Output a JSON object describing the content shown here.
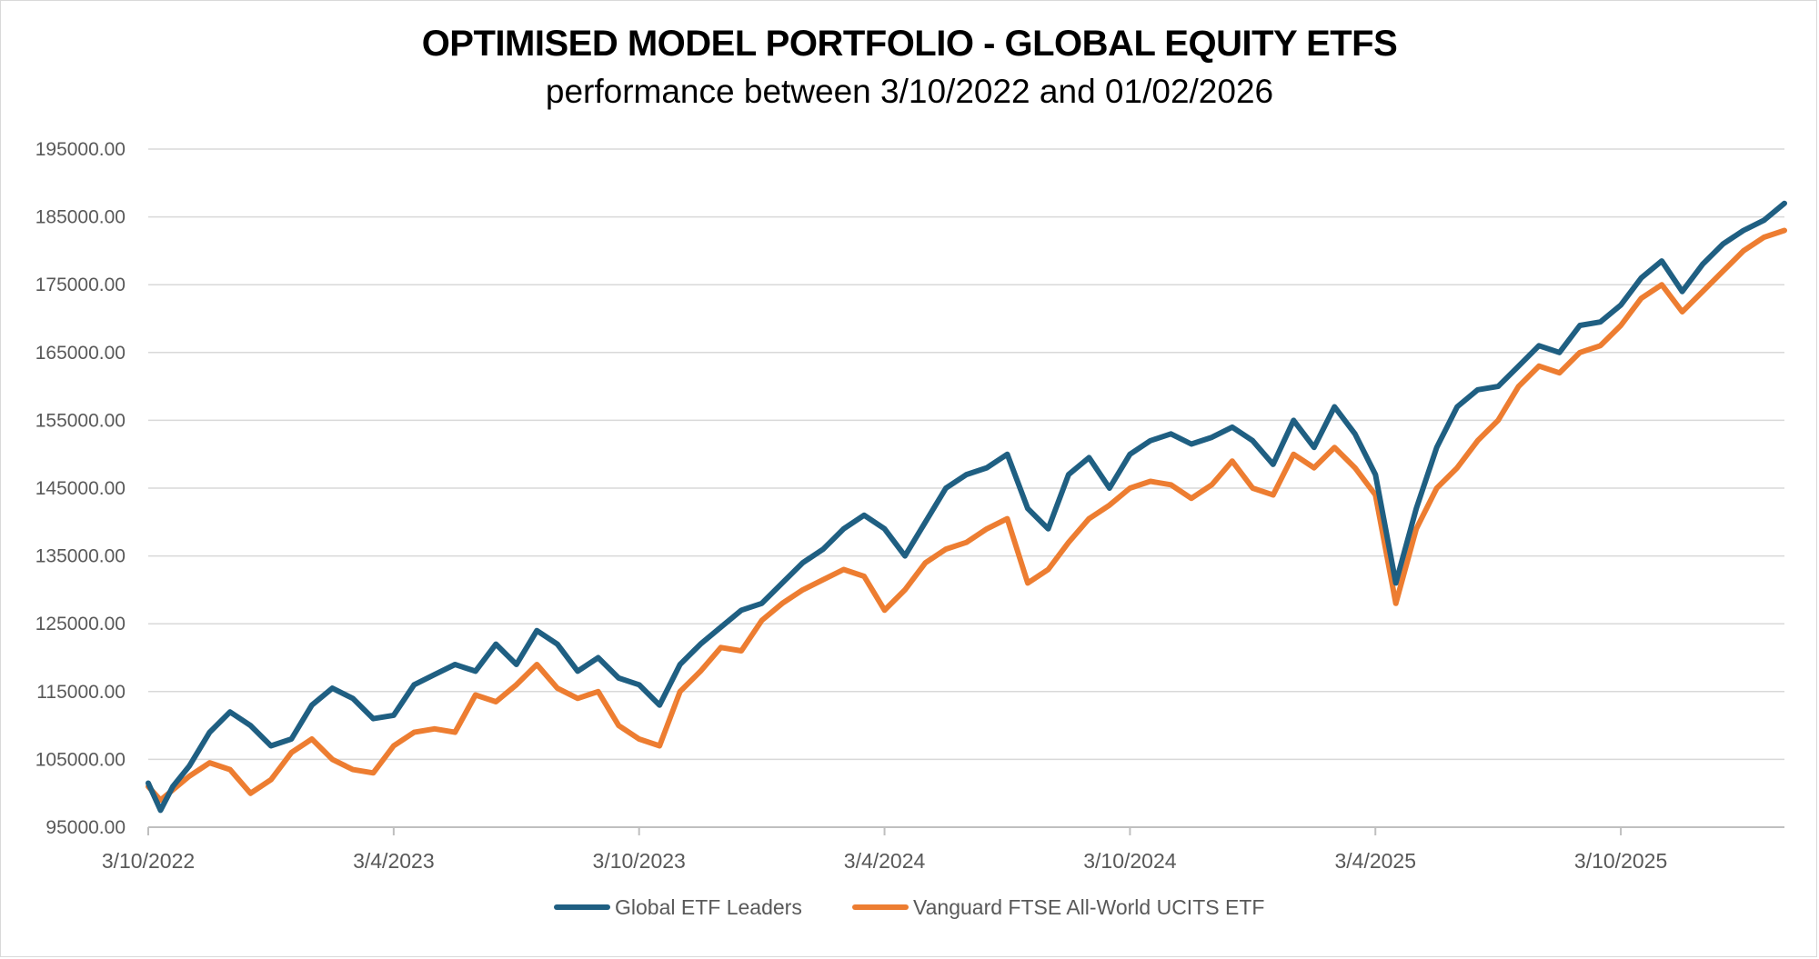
{
  "chart_data": {
    "type": "line",
    "title": "OPTIMISED MODEL PORTFOLIO - GLOBAL EQUITY ETFS",
    "subtitle": "performance between 3/10/2022 and 01/02/2026",
    "xlabel": "",
    "ylabel": "",
    "ylim": [
      95000,
      195000
    ],
    "y_ticks": [
      "95000.00",
      "105000.00",
      "115000.00",
      "125000.00",
      "135000.00",
      "145000.00",
      "155000.00",
      "165000.00",
      "175000.00",
      "185000.00",
      "195000.00"
    ],
    "x_ticks": [
      "3/10/2022",
      "3/4/2023",
      "3/10/2023",
      "3/4/2024",
      "3/10/2024",
      "3/4/2025",
      "3/10/2025"
    ],
    "x_range_months": [
      0,
      40
    ],
    "grid": "horizontal",
    "legend": "bottom",
    "series": [
      {
        "name": "Global ETF Leaders",
        "color": "#1f5f82",
        "x_months": [
          0,
          0.3,
          0.6,
          1,
          1.5,
          2,
          2.5,
          3,
          3.5,
          4,
          4.5,
          5,
          5.5,
          6,
          6.5,
          7,
          7.5,
          8,
          8.5,
          9,
          9.5,
          10,
          10.5,
          11,
          11.5,
          12,
          12.5,
          13,
          13.5,
          14,
          14.5,
          15,
          15.5,
          16,
          16.5,
          17,
          17.5,
          18,
          18.5,
          19,
          19.5,
          20,
          20.5,
          21,
          21.5,
          22,
          22.5,
          23,
          23.5,
          24,
          24.5,
          25,
          25.5,
          26,
          26.5,
          27,
          27.5,
          28,
          28.5,
          29,
          29.5,
          30,
          30.5,
          31,
          31.5,
          32,
          32.5,
          33,
          33.5,
          34,
          34.5,
          35,
          35.5,
          36,
          36.5,
          37,
          37.5,
          38,
          38.5,
          39,
          39.5,
          40
        ],
        "values": [
          101500,
          97500,
          101000,
          104000,
          109000,
          112000,
          110000,
          107000,
          108000,
          113000,
          115500,
          114000,
          111000,
          111500,
          116000,
          117500,
          119000,
          118000,
          122000,
          119000,
          124000,
          122000,
          118000,
          120000,
          117000,
          116000,
          113000,
          119000,
          122000,
          124500,
          127000,
          128000,
          131000,
          134000,
          136000,
          139000,
          141000,
          139000,
          135000,
          140000,
          145000,
          147000,
          148000,
          150000,
          142000,
          139000,
          147000,
          149500,
          145000,
          150000,
          152000,
          153000,
          151500,
          152500,
          154000,
          152000,
          148500,
          155000,
          151000,
          157000,
          153000,
          147000,
          131000,
          142000,
          151000,
          157000,
          159500,
          160000,
          163000,
          166000,
          165000,
          169000,
          169500,
          172000,
          176000,
          178500,
          174000,
          178000,
          181000,
          183000,
          184500,
          187000
        ]
      },
      {
        "name": "Vanguard FTSE All-World UCITS ETF",
        "color": "#ed7d31",
        "x_months": [
          0,
          0.3,
          0.6,
          1,
          1.5,
          2,
          2.5,
          3,
          3.5,
          4,
          4.5,
          5,
          5.5,
          6,
          6.5,
          7,
          7.5,
          8,
          8.5,
          9,
          9.5,
          10,
          10.5,
          11,
          11.5,
          12,
          12.5,
          13,
          13.5,
          14,
          14.5,
          15,
          15.5,
          16,
          16.5,
          17,
          17.5,
          18,
          18.5,
          19,
          19.5,
          20,
          20.5,
          21,
          21.5,
          22,
          22.5,
          23,
          23.5,
          24,
          24.5,
          25,
          25.5,
          26,
          26.5,
          27,
          27.5,
          28,
          28.5,
          29,
          29.5,
          30,
          30.5,
          31,
          31.5,
          32,
          32.5,
          33,
          33.5,
          34,
          34.5,
          35,
          35.5,
          36,
          36.5,
          37,
          37.5,
          38,
          38.5,
          39,
          39.5,
          40
        ],
        "values": [
          101000,
          99000,
          100500,
          102500,
          104500,
          103500,
          100000,
          102000,
          106000,
          108000,
          105000,
          103500,
          103000,
          107000,
          109000,
          109500,
          109000,
          114500,
          113500,
          116000,
          119000,
          115500,
          114000,
          115000,
          110000,
          108000,
          107000,
          115000,
          118000,
          121500,
          121000,
          125500,
          128000,
          130000,
          131500,
          133000,
          132000,
          127000,
          130000,
          134000,
          136000,
          137000,
          139000,
          140500,
          131000,
          133000,
          137000,
          140500,
          142500,
          145000,
          146000,
          145500,
          143500,
          145500,
          149000,
          145000,
          144000,
          150000,
          148000,
          151000,
          148000,
          144000,
          128000,
          139000,
          145000,
          148000,
          152000,
          155000,
          160000,
          163000,
          162000,
          165000,
          166000,
          169000,
          173000,
          175000,
          171000,
          174000,
          177000,
          180000,
          182000,
          183000
        ]
      }
    ]
  }
}
